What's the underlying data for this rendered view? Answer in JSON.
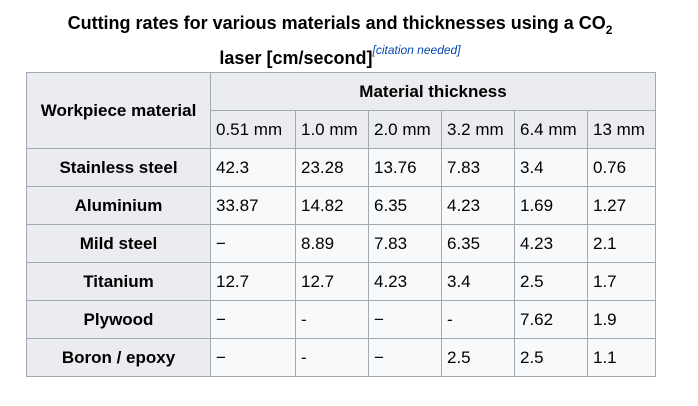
{
  "caption": {
    "line_1": "Cutting rates for various materials and thicknesses using a CO",
    "subscript": "2",
    "line_2": "laser [cm/second]",
    "note": "[citation needed]"
  },
  "table": {
    "header": {
      "row_label": "Workpiece material",
      "group": "Material thickness",
      "columns": [
        "0.51 mm",
        "1.0 mm",
        "2.0 mm",
        "3.2 mm",
        "6.4 mm",
        "13 mm"
      ]
    },
    "rows": [
      {
        "label": "Stainless steel",
        "values": [
          "42.3",
          "23.28",
          "13.76",
          "7.83",
          "3.4",
          "0.76"
        ]
      },
      {
        "label": "Aluminium",
        "values": [
          "33.87",
          "14.82",
          "6.35",
          "4.23",
          "1.69",
          "1.27"
        ]
      },
      {
        "label": "Mild steel",
        "values": [
          "−",
          "8.89",
          "7.83",
          "6.35",
          "4.23",
          "2.1"
        ]
      },
      {
        "label": "Titanium",
        "values": [
          "12.7",
          "12.7",
          "4.23",
          "3.4",
          "2.5",
          "1.7"
        ]
      },
      {
        "label": "Plywood",
        "values": [
          "−",
          "-",
          "−",
          "-",
          "7.62",
          "1.9"
        ]
      },
      {
        "label": "Boron / epoxy",
        "values": [
          "−",
          "-",
          "−",
          "2.5",
          "2.5",
          "1.1"
        ]
      }
    ]
  }
}
